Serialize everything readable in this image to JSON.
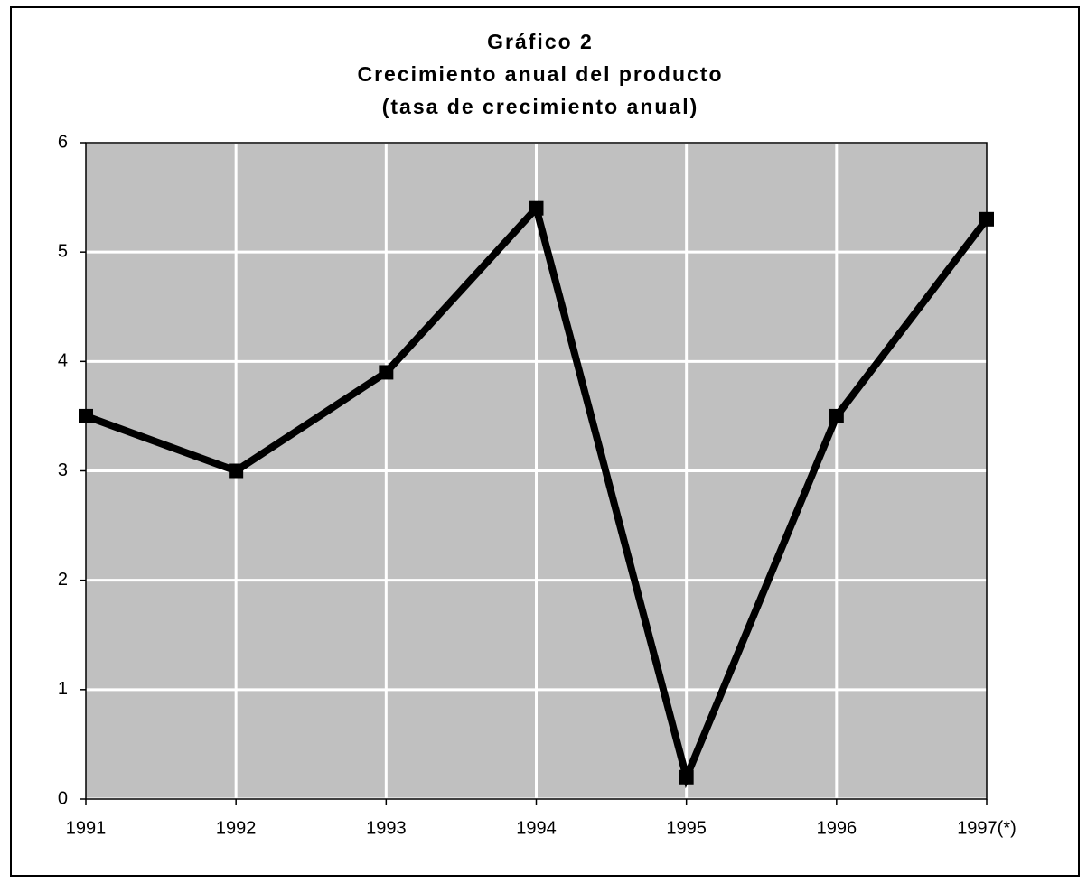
{
  "chart_data": {
    "type": "line",
    "title": [
      "Gráfico 2",
      "Crecimiento anual del producto",
      "(tasa de crecimiento anual)"
    ],
    "categories": [
      "1991",
      "1992",
      "1993",
      "1994",
      "1995",
      "1996",
      "1997(*)"
    ],
    "series": [
      {
        "name": "Crecimiento anual del producto",
        "color": "#000000",
        "values": [
          3.5,
          3.0,
          3.9,
          5.4,
          0.2,
          3.5,
          5.3
        ]
      }
    ],
    "ylim": [
      0,
      6
    ],
    "yticks": [
      0,
      1,
      2,
      3,
      4,
      5,
      6
    ],
    "grid": true,
    "plot_background": "#c0c0c0"
  }
}
